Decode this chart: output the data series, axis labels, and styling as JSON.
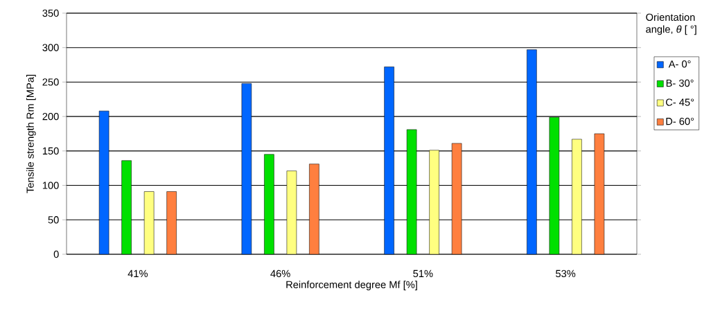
{
  "chart_data": {
    "type": "bar",
    "categories": [
      "41%",
      "46%",
      "51%",
      "53%"
    ],
    "xlabel": "Reinforcement degree Mf [%]",
    "ylabel": "Tensile strength Rm [MPa]",
    "legend_title": "Orientation angle, *θ* [ °]",
    "series": [
      {
        "name": "A- 0°",
        "color": "#0066ff",
        "values": [
          208,
          248,
          272,
          297
        ]
      },
      {
        "name": "B- 30°",
        "color": "#00e000",
        "values": [
          136,
          145,
          181,
          199
        ]
      },
      {
        "name": "C- 45°",
        "color": "#ffff80",
        "values": [
          91,
          121,
          151,
          167
        ]
      },
      {
        "name": "D- 60°",
        "color": "#ff7f3f",
        "values": [
          91,
          131,
          161,
          175
        ]
      }
    ],
    "ylim": [
      0,
      350
    ],
    "yticks": [
      0,
      50,
      100,
      150,
      200,
      250,
      300,
      350
    ],
    "grid": "y",
    "legend": "right"
  }
}
